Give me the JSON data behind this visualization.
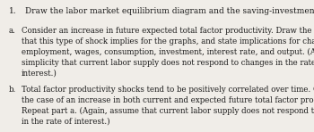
{
  "background_color": "#f0ede8",
  "text_color": "#1a1a1a",
  "title_num": "1.",
  "title_text": "Draw the labor market equilibrium diagram and the saving-investment diagram.",
  "item_a_label": "a.",
  "item_a_text": "Consider an increase in future expected total factor productivity. Draw the changes\nthat this type of shock implies for the graphs, and state implications for changes in\nemployment, wages, consumption, investment, interest rate, and output. (Assume for\nsimplicity that current labor supply does not respond to changes in the rate of\ninterest.)",
  "item_b_label": "b.",
  "item_b_text": "Total factor productivity shocks tend to be positively correlated over time. Consider\nthe case of an increase in both current and expected future total factor productivity.\nRepeat part a. (Again, assume that current labor supply does not respond to changes\nin the rate of interest.)",
  "font_family": "DejaVu Serif",
  "font_size_title": 6.5,
  "font_size_body": 6.2,
  "fig_width": 3.5,
  "fig_height": 1.48,
  "dpi": 100
}
